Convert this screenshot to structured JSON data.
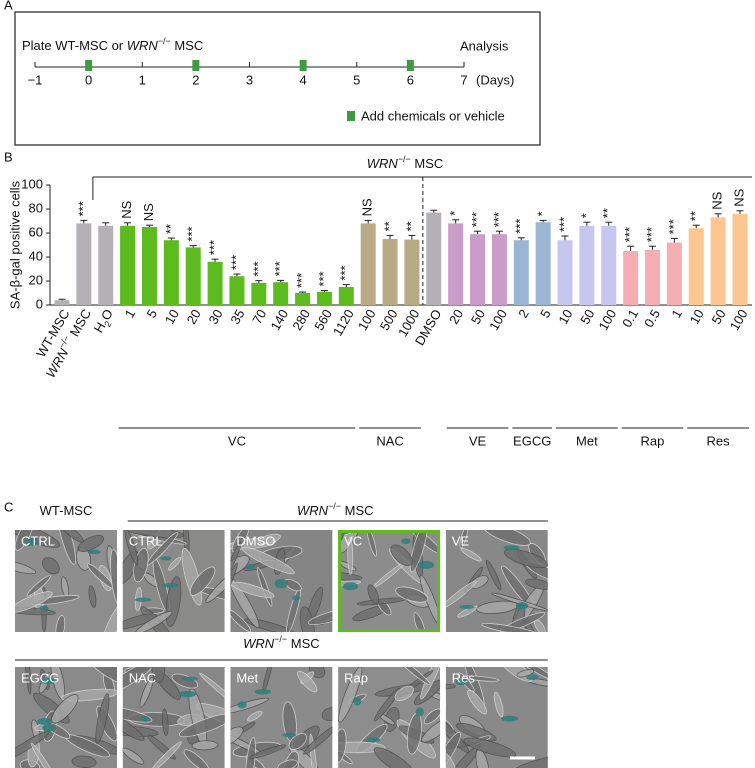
{
  "panel_a": {
    "label": "A",
    "title_parts": [
      "Plate WT-MSC or ",
      {
        "italic": "WRN"
      },
      {
        "sup": "−/−"
      },
      " MSC"
    ],
    "end_label": "Analysis",
    "xlim": [
      -1,
      7
    ],
    "xticks": [
      {
        "value": -1,
        "label": "−1"
      },
      0,
      1,
      2,
      3,
      4,
      5,
      6,
      7
    ],
    "unit": "(Days)",
    "treatment_days": [
      0,
      2,
      4,
      6
    ],
    "color": "#3f9b3f",
    "legend": "Add chemicals or vehicle"
  },
  "chart_data": {
    "type": "bar",
    "label": "B",
    "ylabel": "SA-β-gal positive cells",
    "header_parts": [
      {
        "italic": "WRN"
      },
      {
        "sup": "−/−"
      },
      " MSC"
    ],
    "ylim": [
      0,
      100
    ],
    "yticks": [
      0,
      20,
      40,
      60,
      80,
      100
    ],
    "groups": [
      {
        "name": null,
        "color": "#b3b1b6",
        "categories": [
          "WT-MSC",
          [
            {
              "italic": "WRN"
            },
            {
              "sup": "−/−"
            },
            " MSC"
          ],
          [
            "H",
            {
              "sub": "2"
            },
            "O"
          ]
        ],
        "values": [
          4,
          68,
          66
        ],
        "errors": [
          0.8,
          2.5,
          2.5
        ],
        "significance": [
          null,
          "***",
          null
        ]
      },
      {
        "name": "VC",
        "color": "#5dbb1f",
        "categories": [
          "1",
          "5",
          "10",
          "20",
          "30",
          "35",
          "70",
          "140",
          "280",
          "560",
          "1120"
        ],
        "values": [
          66,
          65,
          54,
          48,
          36,
          24,
          18.5,
          19,
          10,
          11,
          15
        ],
        "errors": [
          2.5,
          1.5,
          1.8,
          1.5,
          2.2,
          1.8,
          1.8,
          1.5,
          0.8,
          1,
          2
        ],
        "significance": [
          "NS",
          "NS",
          "**",
          "***",
          "***",
          "***",
          "***",
          "***",
          "***",
          "***",
          "***"
        ]
      },
      {
        "name": "NAC",
        "color": "#b9aa86",
        "categories": [
          "100",
          "500",
          "1000"
        ],
        "values": [
          68,
          55,
          54.5
        ],
        "errors": [
          2.5,
          3,
          3.5
        ],
        "significance": [
          "NS",
          "**",
          "**"
        ]
      },
      {
        "name": null,
        "color": "#b3b1b6",
        "categories": [
          "DMSO"
        ],
        "values": [
          77
        ],
        "errors": [
          2
        ],
        "significance": [
          null
        ]
      },
      {
        "name": "VE",
        "color": "#c99cc9",
        "categories": [
          "20",
          "50",
          "100"
        ],
        "values": [
          68,
          59,
          59
        ],
        "errors": [
          3,
          2.5,
          2.5
        ],
        "significance": [
          "*",
          "***",
          "***"
        ]
      },
      {
        "name": "EGCG",
        "color": "#9bb6d5",
        "categories": [
          "2",
          "5"
        ],
        "values": [
          54,
          69
        ],
        "errors": [
          2,
          1.5
        ],
        "significance": [
          "***",
          "*"
        ]
      },
      {
        "name": "Met",
        "color": "#c7c6ef",
        "categories": [
          "10",
          "50",
          "100"
        ],
        "values": [
          54,
          66,
          66
        ],
        "errors": [
          3.5,
          3,
          3
        ],
        "significance": [
          "***",
          "*",
          "**"
        ]
      },
      {
        "name": "Rap",
        "color": "#f6aeb5",
        "categories": [
          "0.1",
          "0.5",
          "1"
        ],
        "values": [
          45,
          46,
          52
        ],
        "errors": [
          4,
          3,
          3.5
        ],
        "significance": [
          "***",
          "***",
          "***"
        ]
      },
      {
        "name": "Res",
        "color": "#fbc690",
        "categories": [
          "10",
          "50",
          "100"
        ],
        "values": [
          64,
          73,
          76
        ],
        "errors": [
          2.5,
          3,
          2.5
        ],
        "significance": [
          "**",
          "NS",
          "NS"
        ]
      }
    ]
  },
  "panel_c": {
    "label": "C",
    "rows": [
      {
        "groups": [
          {
            "header_parts": [
              "WT-MSC"
            ],
            "rule": false,
            "images": [
              {
                "label": "CTRL",
                "tone": "#8e8e8e"
              }
            ]
          },
          {
            "header_parts": [
              {
                "italic": "WRN"
              },
              {
                "sup": "−/−"
              },
              " MSC"
            ],
            "rule": true,
            "images": [
              {
                "label": "CTRL",
                "tone": "#8a8a88"
              },
              {
                "label": "DMSO",
                "tone": "#858585"
              },
              {
                "label": "VC",
                "tone": "#8c8c8c",
                "border": "#5dbb1f"
              },
              {
                "label": "VE",
                "tone": "#888888"
              }
            ]
          }
        ]
      },
      {
        "groups": [
          {
            "header_parts": [
              {
                "italic": "WRN"
              },
              {
                "sup": "−/−"
              },
              " MSC"
            ],
            "rule": true,
            "images": [
              {
                "label": "EGCG",
                "tone": "#8a8a8a"
              },
              {
                "label": "NAC",
                "tone": "#878787"
              },
              {
                "label": "Met",
                "tone": "#8b8b8b"
              },
              {
                "label": "Rap",
                "tone": "#8d8d8d"
              },
              {
                "label": "Res",
                "tone": "#898989"
              }
            ]
          }
        ]
      }
    ]
  }
}
